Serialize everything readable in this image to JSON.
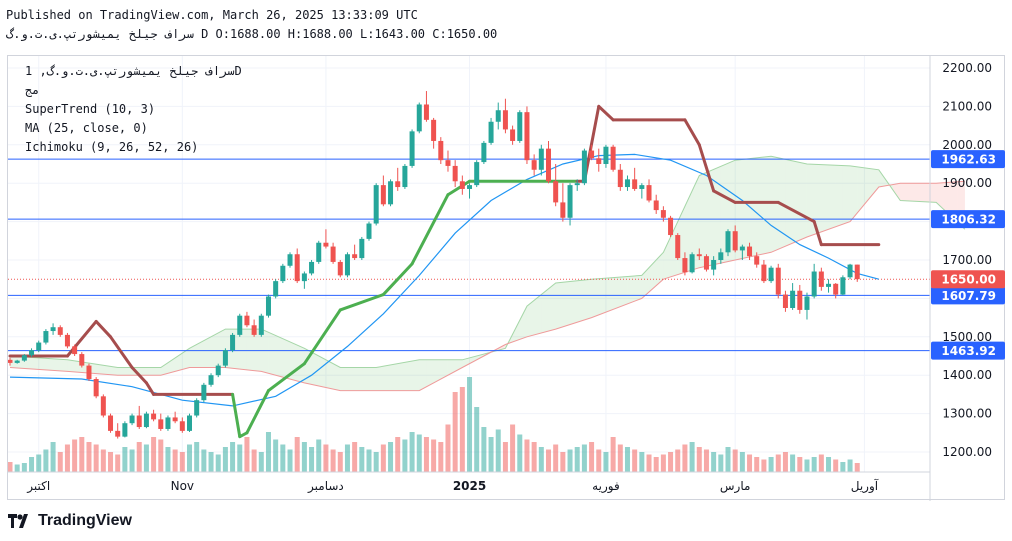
{
  "header": {
    "published": "Published on TradingView.com, March 26, 2025 13:33:09 UTC",
    "ohlc_line": "سراف جیلخ یمیشورتپ.ی.ت.و.گ D O:1688.00 H:1688.00 L:1643.00 C:1650.00"
  },
  "legend": {
    "symbol": "سراف جیلخ یمیشورتپ.ی.ت.و.گ, 1D",
    "sub": "مج",
    "supertrend": "SuperTrend (10, 3)",
    "ma": "MA (25, close, 0)",
    "ichimoku": "Ichimoku (9, 26, 52, 26)"
  },
  "brand": {
    "name": "TradingView"
  },
  "colors": {
    "up": "#26a69a",
    "down": "#ef5350",
    "supertrend": "#a64d4d",
    "supertrend_up": "#4caf50",
    "ma": "#2196f3",
    "level": "#2962ff"
  },
  "chart_data": {
    "type": "candlestick",
    "y_range": [
      1140,
      2240
    ],
    "y_ticks": [
      "2200.00",
      "2100.00",
      "2000.00",
      "1900.00",
      "1800.00",
      "1700.00",
      "1600.00",
      "1500.00",
      "1400.00",
      "1300.00",
      "1200.00"
    ],
    "x_labels": [
      {
        "label": "اکتبر",
        "index": 4
      },
      {
        "label": "Nov",
        "index": 24
      },
      {
        "label": "دسامبر",
        "index": 44
      },
      {
        "label": "2025",
        "index": 64,
        "bold": true
      },
      {
        "label": "فوریه",
        "index": 83
      },
      {
        "label": "مارس",
        "index": 101
      },
      {
        "label": "آوریل",
        "index": 119
      }
    ],
    "levels": [
      {
        "value": 1962.63,
        "label": "1962.63"
      },
      {
        "value": 1806.32,
        "label": "1806.32"
      },
      {
        "value": 1607.79,
        "label": "1607.79"
      },
      {
        "value": 1463.92,
        "label": "1463.92"
      }
    ],
    "last_price": {
      "value": 1650.0,
      "label": "1650.00"
    },
    "candles": [
      [
        1440,
        1445,
        1425,
        1432
      ],
      [
        1432,
        1440,
        1430,
        1438
      ],
      [
        1438,
        1455,
        1435,
        1452
      ],
      [
        1452,
        1470,
        1448,
        1465
      ],
      [
        1465,
        1490,
        1460,
        1485
      ],
      [
        1485,
        1520,
        1480,
        1515
      ],
      [
        1515,
        1535,
        1505,
        1525
      ],
      [
        1525,
        1530,
        1500,
        1505
      ],
      [
        1505,
        1510,
        1470,
        1475
      ],
      [
        1475,
        1480,
        1450,
        1455
      ],
      [
        1455,
        1460,
        1420,
        1425
      ],
      [
        1425,
        1430,
        1385,
        1390
      ],
      [
        1390,
        1395,
        1340,
        1345
      ],
      [
        1345,
        1350,
        1290,
        1295
      ],
      [
        1295,
        1300,
        1250,
        1255
      ],
      [
        1255,
        1275,
        1235,
        1240
      ],
      [
        1240,
        1280,
        1238,
        1275
      ],
      [
        1275,
        1300,
        1270,
        1295
      ],
      [
        1295,
        1320,
        1260,
        1265
      ],
      [
        1265,
        1305,
        1262,
        1300
      ],
      [
        1300,
        1310,
        1280,
        1285
      ],
      [
        1285,
        1300,
        1255,
        1260
      ],
      [
        1260,
        1295,
        1255,
        1290
      ],
      [
        1290,
        1305,
        1275,
        1280
      ],
      [
        1280,
        1290,
        1250,
        1255
      ],
      [
        1255,
        1300,
        1252,
        1295
      ],
      [
        1295,
        1340,
        1290,
        1335
      ],
      [
        1335,
        1380,
        1330,
        1375
      ],
      [
        1375,
        1405,
        1370,
        1400
      ],
      [
        1400,
        1430,
        1395,
        1425
      ],
      [
        1425,
        1470,
        1420,
        1465
      ],
      [
        1465,
        1510,
        1460,
        1505
      ],
      [
        1505,
        1560,
        1500,
        1555
      ],
      [
        1555,
        1565,
        1525,
        1530
      ],
      [
        1530,
        1545,
        1500,
        1505
      ],
      [
        1505,
        1560,
        1500,
        1555
      ],
      [
        1555,
        1610,
        1550,
        1605
      ],
      [
        1605,
        1650,
        1600,
        1645
      ],
      [
        1645,
        1690,
        1640,
        1685
      ],
      [
        1685,
        1720,
        1680,
        1715
      ],
      [
        1715,
        1730,
        1640,
        1645
      ],
      [
        1645,
        1670,
        1625,
        1665
      ],
      [
        1665,
        1700,
        1660,
        1695
      ],
      [
        1695,
        1750,
        1690,
        1745
      ],
      [
        1745,
        1780,
        1730,
        1735
      ],
      [
        1735,
        1745,
        1690,
        1695
      ],
      [
        1695,
        1700,
        1655,
        1660
      ],
      [
        1660,
        1720,
        1655,
        1715
      ],
      [
        1715,
        1740,
        1700,
        1705
      ],
      [
        1705,
        1760,
        1700,
        1755
      ],
      [
        1755,
        1800,
        1750,
        1795
      ],
      [
        1795,
        1900,
        1790,
        1895
      ],
      [
        1895,
        1920,
        1840,
        1845
      ],
      [
        1845,
        1910,
        1840,
        1905
      ],
      [
        1905,
        1940,
        1880,
        1890
      ],
      [
        1890,
        1950,
        1885,
        1945
      ],
      [
        1945,
        2040,
        1940,
        2035
      ],
      [
        2035,
        2110,
        2030,
        2105
      ],
      [
        2105,
        2140,
        2060,
        2065
      ],
      [
        2065,
        2070,
        1990,
        2010
      ],
      [
        2010,
        2020,
        1950,
        1960
      ],
      [
        1960,
        1985,
        1930,
        1945
      ],
      [
        1945,
        1960,
        1890,
        1905
      ],
      [
        1905,
        1920,
        1870,
        1885
      ],
      [
        1885,
        1900,
        1860,
        1895
      ],
      [
        1895,
        1960,
        1890,
        1955
      ],
      [
        1955,
        2010,
        1950,
        2005
      ],
      [
        2005,
        2070,
        2000,
        2060
      ],
      [
        2060,
        2110,
        2040,
        2090
      ],
      [
        2090,
        2120,
        2030,
        2040
      ],
      [
        2040,
        2050,
        2000,
        2010
      ],
      [
        2010,
        2090,
        2005,
        2085
      ],
      [
        2085,
        2100,
        1950,
        1960
      ],
      [
        1960,
        1975,
        1920,
        1935
      ],
      [
        1935,
        2000,
        1920,
        1990
      ],
      [
        1990,
        2010,
        1900,
        1905
      ],
      [
        1905,
        1950,
        1840,
        1850
      ],
      [
        1850,
        1900,
        1800,
        1810
      ],
      [
        1810,
        1900,
        1790,
        1895
      ],
      [
        1895,
        1910,
        1880,
        1900
      ],
      [
        1900,
        1990,
        1895,
        1985
      ],
      [
        1985,
        2000,
        1960,
        1965
      ],
      [
        1965,
        1990,
        1930,
        1950
      ],
      [
        1950,
        2000,
        1940,
        1995
      ],
      [
        1995,
        2000,
        1930,
        1935
      ],
      [
        1935,
        1950,
        1880,
        1890
      ],
      [
        1890,
        1920,
        1880,
        1910
      ],
      [
        1910,
        1940,
        1880,
        1885
      ],
      [
        1885,
        1900,
        1860,
        1895
      ],
      [
        1895,
        1910,
        1850,
        1855
      ],
      [
        1855,
        1870,
        1820,
        1830
      ],
      [
        1830,
        1840,
        1800,
        1810
      ],
      [
        1810,
        1815,
        1760,
        1765
      ],
      [
        1765,
        1770,
        1700,
        1705
      ],
      [
        1705,
        1720,
        1660,
        1668
      ],
      [
        1668,
        1720,
        1665,
        1715
      ],
      [
        1715,
        1730,
        1700,
        1710
      ],
      [
        1710,
        1715,
        1670,
        1675
      ],
      [
        1675,
        1710,
        1660,
        1700
      ],
      [
        1700,
        1730,
        1690,
        1720
      ],
      [
        1720,
        1780,
        1710,
        1775
      ],
      [
        1775,
        1790,
        1720,
        1725
      ],
      [
        1725,
        1740,
        1700,
        1735
      ],
      [
        1735,
        1745,
        1700,
        1710
      ],
      [
        1710,
        1720,
        1680,
        1688
      ],
      [
        1688,
        1700,
        1640,
        1645
      ],
      [
        1645,
        1685,
        1640,
        1680
      ],
      [
        1680,
        1690,
        1600,
        1610
      ],
      [
        1610,
        1620,
        1565,
        1575
      ],
      [
        1575,
        1640,
        1570,
        1620
      ],
      [
        1620,
        1635,
        1560,
        1570
      ],
      [
        1570,
        1615,
        1545,
        1605
      ],
      [
        1605,
        1690,
        1600,
        1670
      ],
      [
        1670,
        1680,
        1620,
        1630
      ],
      [
        1630,
        1650,
        1615,
        1638
      ],
      [
        1638,
        1640,
        1600,
        1610
      ],
      [
        1610,
        1660,
        1608,
        1655
      ],
      [
        1655,
        1690,
        1650,
        1688
      ],
      [
        1688,
        1688,
        1643,
        1650
      ]
    ],
    "volumes": [
      20,
      15,
      18,
      30,
      35,
      45,
      60,
      40,
      55,
      65,
      70,
      60,
      55,
      45,
      40,
      35,
      50,
      45,
      60,
      55,
      70,
      65,
      50,
      45,
      40,
      55,
      60,
      45,
      40,
      35,
      50,
      60,
      55,
      70,
      45,
      40,
      80,
      65,
      55,
      45,
      70,
      60,
      50,
      65,
      55,
      45,
      40,
      55,
      60,
      50,
      45,
      40,
      55,
      60,
      70,
      65,
      80,
      75,
      70,
      65,
      60,
      95,
      160,
      170,
      190,
      130,
      90,
      70,
      85,
      60,
      95,
      75,
      65,
      60,
      50,
      45,
      55,
      40,
      45,
      50,
      55,
      60,
      45,
      40,
      70,
      55,
      50,
      45,
      40,
      35,
      30,
      35,
      40,
      45,
      55,
      60,
      50,
      45,
      40,
      35,
      50,
      45,
      40,
      35,
      30,
      25,
      30,
      35,
      40,
      35,
      30,
      25,
      30,
      35,
      30,
      25,
      20,
      25,
      18,
      15
    ],
    "ma": [
      [
        0,
        1395
      ],
      [
        10,
        1390
      ],
      [
        17,
        1370
      ],
      [
        24,
        1335
      ],
      [
        31,
        1320
      ],
      [
        37,
        1345
      ],
      [
        42,
        1400
      ],
      [
        47,
        1475
      ],
      [
        52,
        1560
      ],
      [
        57,
        1660
      ],
      [
        62,
        1770
      ],
      [
        67,
        1855
      ],
      [
        72,
        1910
      ],
      [
        77,
        1950
      ],
      [
        82,
        1972
      ],
      [
        87,
        1975
      ],
      [
        92,
        1960
      ],
      [
        97,
        1920
      ],
      [
        102,
        1855
      ],
      [
        106,
        1790
      ],
      [
        110,
        1740
      ],
      [
        114,
        1705
      ],
      [
        118,
        1665
      ],
      [
        121,
        1650
      ]
    ],
    "supertrend": [
      [
        0,
        1450,
        "down"
      ],
      [
        8,
        1450,
        "down"
      ],
      [
        12,
        1540,
        "down"
      ],
      [
        14,
        1500,
        "down"
      ],
      [
        17,
        1420,
        "down"
      ],
      [
        19,
        1380,
        "down"
      ],
      [
        20,
        1350,
        "down"
      ],
      [
        31,
        1350,
        "down"
      ],
      [
        32,
        1240,
        "up"
      ],
      [
        33,
        1250,
        "up"
      ],
      [
        36,
        1360,
        "up"
      ],
      [
        41,
        1430,
        "up"
      ],
      [
        46,
        1570,
        "up"
      ],
      [
        52,
        1610,
        "up"
      ],
      [
        56,
        1690,
        "up"
      ],
      [
        61,
        1870,
        "up"
      ],
      [
        64,
        1905,
        "up"
      ],
      [
        79,
        1905,
        "up"
      ],
      [
        80,
        1905,
        "down"
      ],
      [
        82,
        2100,
        "down"
      ],
      [
        84,
        2065,
        "down"
      ],
      [
        94,
        2065,
        "down"
      ],
      [
        96,
        2000,
        "down"
      ],
      [
        98,
        1880,
        "down"
      ],
      [
        101,
        1850,
        "down"
      ],
      [
        107,
        1850,
        "down"
      ],
      [
        112,
        1800,
        "down"
      ],
      [
        113,
        1740,
        "down"
      ],
      [
        121,
        1740,
        "down"
      ]
    ],
    "kumo_a": [
      [
        0,
        1450
      ],
      [
        8,
        1440
      ],
      [
        15,
        1420
      ],
      [
        21,
        1420
      ],
      [
        25,
        1470
      ],
      [
        30,
        1520
      ],
      [
        35,
        1520
      ],
      [
        41,
        1470
      ],
      [
        46,
        1420
      ],
      [
        51,
        1420
      ],
      [
        57,
        1440
      ],
      [
        63,
        1440
      ],
      [
        69,
        1470
      ],
      [
        72,
        1580
      ],
      [
        76,
        1640
      ],
      [
        81,
        1650
      ],
      [
        88,
        1660
      ],
      [
        91,
        1720
      ],
      [
        96,
        1920
      ],
      [
        101,
        1960
      ],
      [
        106,
        1970
      ],
      [
        111,
        1950
      ],
      [
        117,
        1945
      ],
      [
        121,
        1935
      ],
      [
        124,
        1855
      ],
      [
        129,
        1850
      ],
      [
        133,
        1780
      ]
    ],
    "kumo_b": [
      [
        0,
        1420
      ],
      [
        8,
        1410
      ],
      [
        15,
        1400
      ],
      [
        21,
        1400
      ],
      [
        25,
        1420
      ],
      [
        30,
        1420
      ],
      [
        35,
        1410
      ],
      [
        41,
        1380
      ],
      [
        46,
        1360
      ],
      [
        51,
        1360
      ],
      [
        57,
        1360
      ],
      [
        63,
        1420
      ],
      [
        69,
        1480
      ],
      [
        72,
        1500
      ],
      [
        76,
        1520
      ],
      [
        81,
        1550
      ],
      [
        88,
        1600
      ],
      [
        91,
        1650
      ],
      [
        96,
        1680
      ],
      [
        101,
        1700
      ],
      [
        106,
        1720
      ],
      [
        111,
        1760
      ],
      [
        117,
        1800
      ],
      [
        121,
        1890
      ],
      [
        124,
        1900
      ],
      [
        129,
        1900
      ],
      [
        133,
        1905
      ]
    ]
  }
}
